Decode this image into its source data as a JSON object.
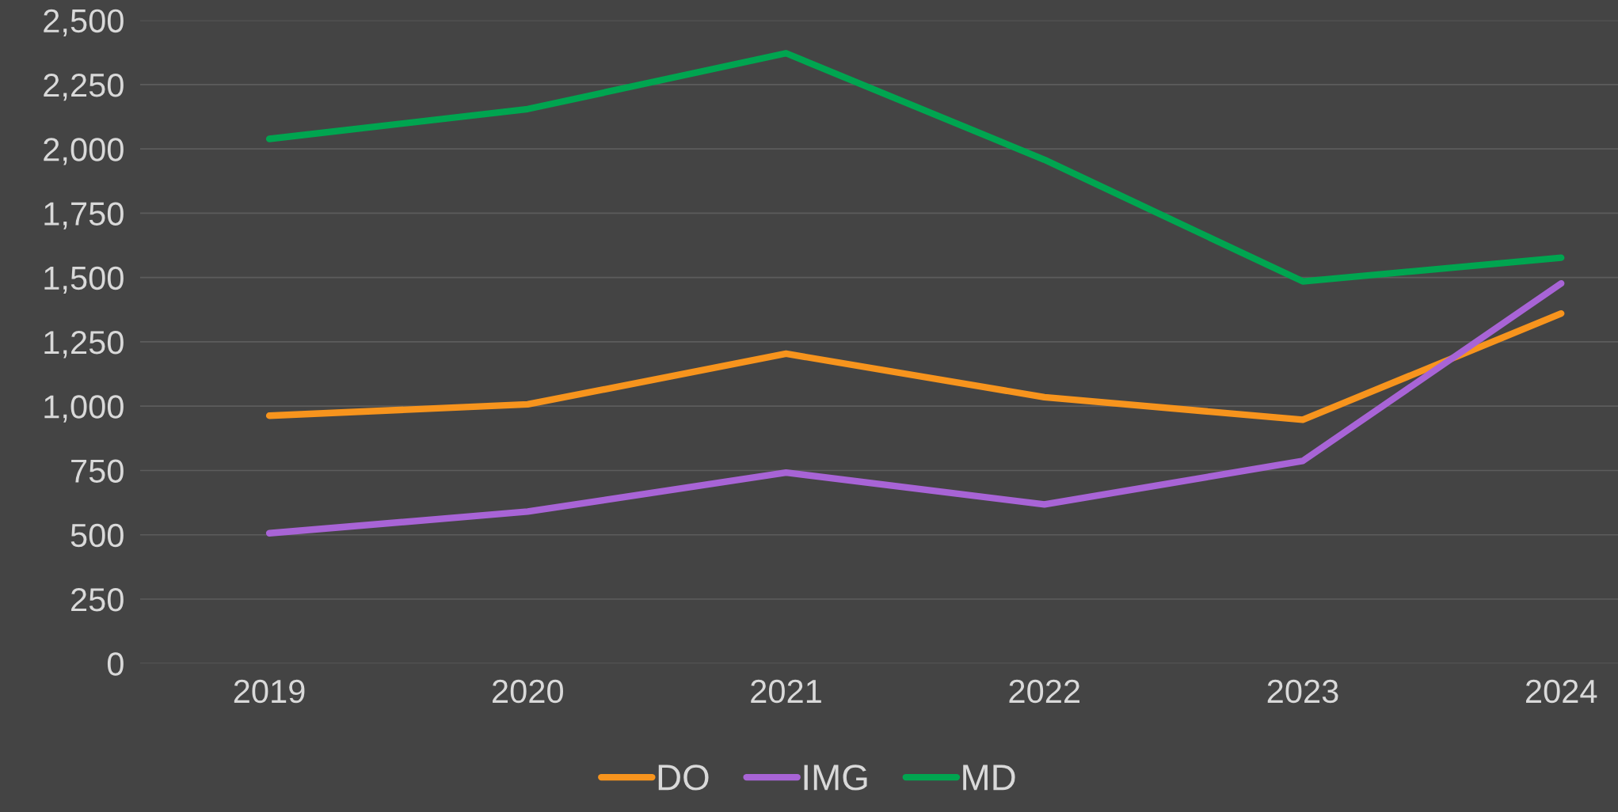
{
  "chart_data": {
    "type": "line",
    "categories": [
      "2019",
      "2020",
      "2021",
      "2022",
      "2023",
      "2024"
    ],
    "series": [
      {
        "name": "DO",
        "color": "#f7941d",
        "values": [
          963,
          1007,
          1204,
          1035,
          947,
          1360
        ]
      },
      {
        "name": "IMG",
        "color": "#a864d6",
        "values": [
          506,
          590,
          742,
          618,
          787,
          1477
        ]
      },
      {
        "name": "MD",
        "color": "#00a550",
        "values": [
          2039,
          2155,
          2372,
          1958,
          1485,
          1577
        ]
      }
    ],
    "ylim": [
      0,
      2500
    ],
    "yticks": [
      {
        "value": 0,
        "label": "0"
      },
      {
        "value": 250,
        "label": "250"
      },
      {
        "value": 500,
        "label": "500"
      },
      {
        "value": 750,
        "label": "750"
      },
      {
        "value": 1000,
        "label": "1,000"
      },
      {
        "value": 1250,
        "label": "1,250"
      },
      {
        "value": 1500,
        "label": "1,500"
      },
      {
        "value": 1750,
        "label": "1,750"
      },
      {
        "value": 2000,
        "label": "2,000"
      },
      {
        "value": 2250,
        "label": "2,250"
      },
      {
        "value": 2500,
        "label": "2,500"
      }
    ],
    "grid": "y",
    "legend": "bottom",
    "marker": "none",
    "line_style": "solid"
  }
}
